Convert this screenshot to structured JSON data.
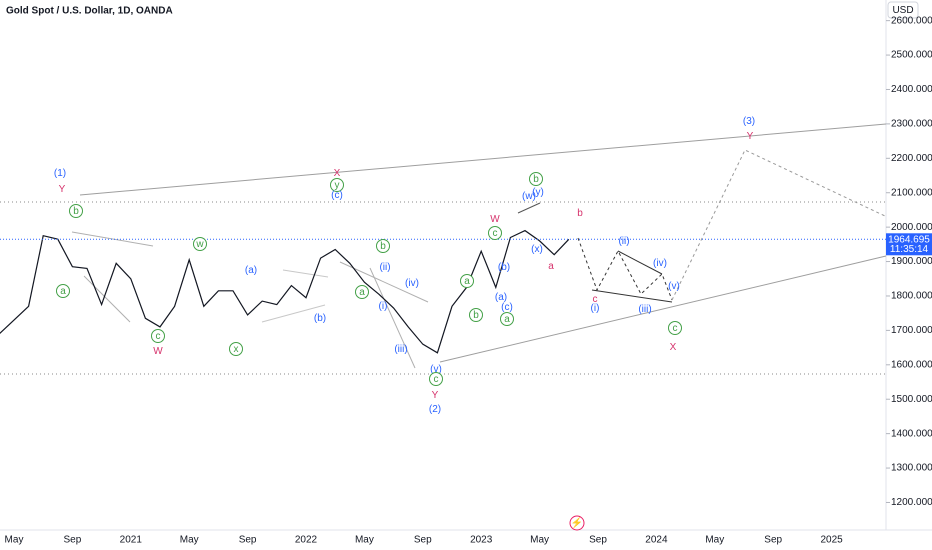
{
  "chart_data": {
    "type": "line",
    "title": "Gold Spot / U.S. Dollar, 1D, OANDA",
    "currency": "USD",
    "last_price": 1964.695,
    "countdown": "11:35:14",
    "color": "#131722",
    "categories": [
      null,
      "May",
      null,
      null,
      null,
      "Sep",
      null,
      null,
      null,
      "2021",
      null,
      null,
      null,
      "May",
      null,
      null,
      null,
      "Sep",
      null,
      null,
      null,
      "2022",
      null,
      null,
      null,
      "May",
      null,
      null,
      null,
      "Sep",
      null,
      null,
      null,
      "2023",
      null,
      null,
      null,
      "May",
      null,
      null,
      null,
      "Sep",
      null,
      null,
      null,
      "2024",
      null,
      null,
      null,
      "May",
      null,
      null,
      null,
      "Sep",
      null,
      null,
      null,
      "2025",
      null,
      null,
      null
    ],
    "values": [
      1690,
      1730,
      1770,
      1975,
      1965,
      1885,
      1880,
      1775,
      1895,
      1850,
      1735,
      1710,
      1770,
      1905,
      1770,
      1815,
      1815,
      1745,
      1785,
      1775,
      1830,
      1795,
      1910,
      1935,
      1895,
      1840,
      1805,
      1765,
      1710,
      1660,
      1635,
      1770,
      1825,
      1930,
      1825,
      1970,
      1990,
      1960,
      1920,
      1964.695,
      null,
      null,
      null,
      null,
      null,
      null,
      null,
      null,
      null,
      null,
      null,
      null,
      null,
      null,
      null,
      null,
      null,
      null,
      null,
      null,
      null
    ],
    "ylim": [
      1120,
      2660
    ],
    "yticks": [
      {
        "value": 1200,
        "label": "1200.000"
      },
      {
        "value": 1300,
        "label": "1300.000"
      },
      {
        "value": 1400,
        "label": "1400.000"
      },
      {
        "value": 1500,
        "label": "1500.000"
      },
      {
        "value": 1600,
        "label": "1600.000"
      },
      {
        "value": 1700,
        "label": "1700.000"
      },
      {
        "value": 1800,
        "label": "1800.000"
      },
      {
        "value": 1900,
        "label": "1900.000"
      },
      {
        "value": 2000,
        "label": "2000.000"
      },
      {
        "value": 2100,
        "label": "2100.000"
      },
      {
        "value": 2200,
        "label": "2200.000"
      },
      {
        "value": 2300,
        "label": "2300.000"
      },
      {
        "value": 2400,
        "label": "2400.000"
      },
      {
        "value": 2500,
        "label": "2500.000"
      },
      {
        "value": 2600,
        "label": "2600.000"
      }
    ],
    "annotations": [
      {
        "text": "(1)",
        "color": "#2962ff"
      },
      {
        "text": "Y",
        "color": "#d6336c"
      },
      {
        "text": "b",
        "color": "#43a047",
        "circled": true
      },
      {
        "text": "a",
        "color": "#43a047",
        "circled": true
      },
      {
        "text": "c",
        "color": "#43a047",
        "circled": true
      },
      {
        "text": "W",
        "color": "#d6336c"
      },
      {
        "text": "w",
        "color": "#43a047",
        "circled": true
      },
      {
        "text": "(a)",
        "color": "#2962ff"
      },
      {
        "text": "x",
        "color": "#43a047",
        "circled": true
      },
      {
        "text": "(b)",
        "color": "#2962ff"
      },
      {
        "text": "X",
        "color": "#d6336c"
      },
      {
        "text": "y",
        "color": "#43a047",
        "circled": true
      },
      {
        "text": "(c)",
        "color": "#2962ff"
      },
      {
        "text": "b",
        "color": "#43a047",
        "circled": true
      },
      {
        "text": "(ii)",
        "color": "#2962ff"
      },
      {
        "text": "a",
        "color": "#43a047",
        "circled": true
      },
      {
        "text": "(iv)",
        "color": "#2962ff"
      },
      {
        "text": "(i)",
        "color": "#2962ff"
      },
      {
        "text": "(iii)",
        "color": "#2962ff"
      },
      {
        "text": "(v)",
        "color": "#2962ff"
      },
      {
        "text": "c",
        "color": "#43a047",
        "circled": true
      },
      {
        "text": "Y",
        "color": "#d6336c"
      },
      {
        "text": "(2)",
        "color": "#2962ff"
      },
      {
        "text": "W",
        "color": "#d6336c"
      },
      {
        "text": "c",
        "color": "#43a047",
        "circled": true
      },
      {
        "text": "a",
        "color": "#43a047",
        "circled": true
      },
      {
        "text": "(b)",
        "color": "#2962ff"
      },
      {
        "text": "(a)",
        "color": "#2962ff"
      },
      {
        "text": "(c)",
        "color": "#2962ff"
      },
      {
        "text": "b",
        "color": "#43a047",
        "circled": true
      },
      {
        "text": "a",
        "color": "#43a047",
        "circled": true
      },
      {
        "text": "b",
        "color": "#43a047",
        "circled": true
      },
      {
        "text": "(w)",
        "color": "#2962ff"
      },
      {
        "text": "(y)",
        "color": "#2962ff"
      },
      {
        "text": "(x)",
        "color": "#2962ff"
      },
      {
        "text": "b",
        "color": "#d6336c"
      },
      {
        "text": "a",
        "color": "#d6336c"
      },
      {
        "text": "c",
        "color": "#d6336c"
      },
      {
        "text": "(i)",
        "color": "#2962ff"
      },
      {
        "text": "(ii)",
        "color": "#2962ff"
      },
      {
        "text": "(iii)",
        "color": "#2962ff"
      },
      {
        "text": "(iv)",
        "color": "#2962ff"
      },
      {
        "text": "(v)",
        "color": "#2962ff"
      },
      {
        "text": "c",
        "color": "#43a047",
        "circled": true
      },
      {
        "text": "X",
        "color": "#d6336c"
      },
      {
        "text": "(3)",
        "color": "#2962ff"
      },
      {
        "text": "Y",
        "color": "#d6336c"
      }
    ]
  }
}
